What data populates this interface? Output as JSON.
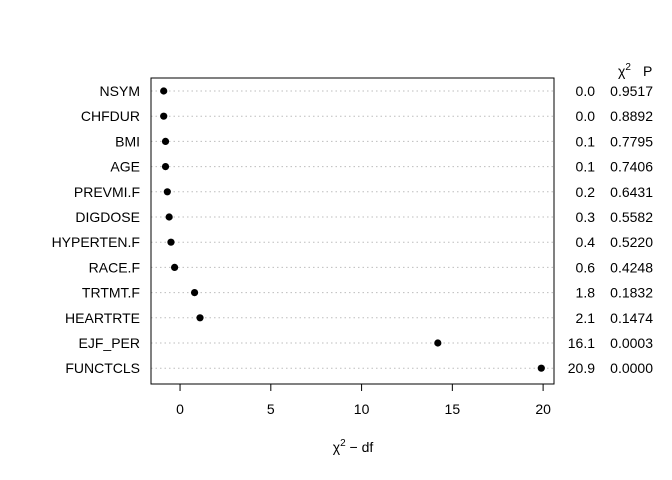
{
  "chart_data": {
    "type": "scatter",
    "xlabel_symbol": "χ",
    "xlabel_superscript": "2",
    "xlabel_rest": " − df",
    "col_header_symbol": "χ",
    "col_header_superscript": "2",
    "col_header_p": "P",
    "xlim": [
      -1.6,
      20.6
    ],
    "xticks": [
      0,
      5,
      10,
      15,
      20
    ],
    "xtick_labels": [
      "0",
      "5",
      "10",
      "15",
      "20"
    ],
    "grid": true,
    "grid_style": "dotted",
    "rows": [
      {
        "label": "NSYM",
        "value": -0.9,
        "chisq": "0.0",
        "p": "0.9517"
      },
      {
        "label": "CHFDUR",
        "value": -0.9,
        "chisq": "0.0",
        "p": "0.8892"
      },
      {
        "label": "BMI",
        "value": -0.8,
        "chisq": "0.1",
        "p": "0.7795"
      },
      {
        "label": "AGE",
        "value": -0.8,
        "chisq": "0.1",
        "p": "0.7406"
      },
      {
        "label": "PREVMI.F",
        "value": -0.7,
        "chisq": "0.2",
        "p": "0.6431"
      },
      {
        "label": "DIGDOSE",
        "value": -0.6,
        "chisq": "0.3",
        "p": "0.5582"
      },
      {
        "label": "HYPERTEN.F",
        "value": -0.5,
        "chisq": "0.4",
        "p": "0.5220"
      },
      {
        "label": "RACE.F",
        "value": -0.3,
        "chisq": "0.6",
        "p": "0.4248"
      },
      {
        "label": "TRTMT.F",
        "value": 0.8,
        "chisq": "1.8",
        "p": "0.1832"
      },
      {
        "label": "HEARTRTE",
        "value": 1.1,
        "chisq": "2.1",
        "p": "0.1474"
      },
      {
        "label": "EJF_PER",
        "value": 14.2,
        "chisq": "16.1",
        "p": "0.0003"
      },
      {
        "label": "FUNCTCLS",
        "value": 19.9,
        "chisq": "20.9",
        "p": "0.0000"
      }
    ]
  }
}
